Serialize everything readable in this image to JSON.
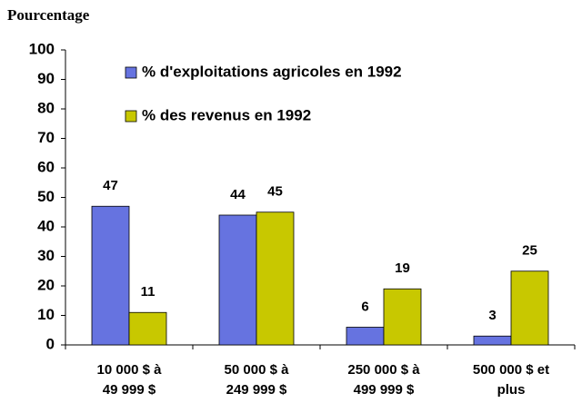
{
  "chart_data": {
    "type": "bar",
    "y_label": "Pourcentage",
    "categories": [
      "10 000 $ à\n49 999 $",
      "50 000 $ à\n249 999 $",
      "250 000 $ à\n499 999 $",
      "500 000 $ et\nplus"
    ],
    "series": [
      {
        "name": "% d'exploitations agricoles en 1992",
        "color": "#6673e0",
        "values": [
          47,
          44,
          6,
          3
        ]
      },
      {
        "name": "% des revenus en 1992",
        "color": "#c8c800",
        "values": [
          11,
          45,
          19,
          25
        ]
      }
    ],
    "ylim": [
      0,
      100
    ],
    "yticks": [
      0,
      10,
      20,
      30,
      40,
      50,
      60,
      70,
      80,
      90,
      100
    ],
    "grid": false
  }
}
